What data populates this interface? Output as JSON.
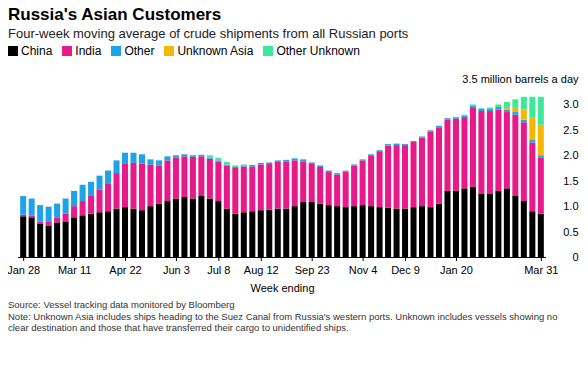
{
  "chart_data": {
    "type": "bar",
    "stacked": true,
    "title": "Russia's Asian Customers",
    "subtitle": "Four-week moving average of crude shipments from all Russian ports",
    "x_label": "Week ending",
    "source": "Source: Vessel tracking data monitored by Bloomberg",
    "note": "Note: Unknown Asia includes ships heading to the Suez Canal from Russia's western ports. Unknown includes vessels showing no clear destination and those that have transferred their cargo to unidentified ships.",
    "legend": "top-left",
    "categories": [
      "Jan 28",
      null,
      null,
      null,
      null,
      null,
      "Mar 11",
      null,
      null,
      null,
      null,
      null,
      "Apr 22",
      null,
      null,
      null,
      null,
      null,
      "Jun 3",
      null,
      null,
      null,
      null,
      "Jul 8",
      null,
      null,
      null,
      null,
      "Aug 12",
      null,
      null,
      null,
      null,
      null,
      "Sep 23",
      null,
      null,
      null,
      null,
      null,
      "Nov 4",
      null,
      null,
      null,
      null,
      "Dec 9",
      null,
      null,
      null,
      null,
      null,
      "Jan 20",
      null,
      null,
      null,
      null,
      null,
      null,
      null,
      null,
      null,
      "Mar 31"
    ],
    "series": [
      {
        "name": "China",
        "color": "#000000",
        "values": [
          0.8,
          0.78,
          0.65,
          0.62,
          0.68,
          0.7,
          0.78,
          0.82,
          0.85,
          0.88,
          0.9,
          0.95,
          0.98,
          0.95,
          0.92,
          1.0,
          1.05,
          1.1,
          1.15,
          1.18,
          1.15,
          1.2,
          1.15,
          1.1,
          0.95,
          0.85,
          0.88,
          0.9,
          0.92,
          0.93,
          0.95,
          0.95,
          1.0,
          1.08,
          1.08,
          1.05,
          1.02,
          1.0,
          0.98,
          1.0,
          1.02,
          1.0,
          0.98,
          0.97,
          0.95,
          0.95,
          0.98,
          1.0,
          0.98,
          1.05,
          1.3,
          1.3,
          1.35,
          1.38,
          1.25,
          1.25,
          1.3,
          1.35,
          1.2,
          1.1,
          0.9,
          0.85
        ]
      },
      {
        "name": "India",
        "color": "#e8198b",
        "values": [
          0.03,
          0.03,
          0.05,
          0.07,
          0.1,
          0.15,
          0.22,
          0.28,
          0.35,
          0.45,
          0.55,
          0.7,
          0.85,
          0.9,
          0.92,
          0.82,
          0.75,
          0.8,
          0.8,
          0.8,
          0.82,
          0.78,
          0.78,
          0.78,
          0.85,
          0.9,
          0.9,
          0.88,
          0.9,
          0.9,
          0.92,
          0.93,
          0.9,
          0.8,
          0.75,
          0.72,
          0.65,
          0.62,
          0.7,
          0.8,
          0.88,
          1.0,
          1.1,
          1.22,
          1.25,
          1.25,
          1.28,
          1.35,
          1.48,
          1.5,
          1.4,
          1.42,
          1.4,
          1.55,
          1.62,
          1.62,
          1.6,
          1.5,
          1.6,
          1.55,
          1.35,
          1.1
        ]
      },
      {
        "name": "Other",
        "color": "#1fa3e8",
        "values": [
          0.37,
          0.34,
          0.32,
          0.3,
          0.27,
          0.3,
          0.3,
          0.32,
          0.28,
          0.27,
          0.25,
          0.25,
          0.22,
          0.2,
          0.18,
          0.1,
          0.1,
          0.08,
          0.05,
          0.04,
          0.03,
          0.03,
          0.02,
          0.02,
          0.02,
          0.02,
          0.02,
          0.03,
          0.03,
          0.03,
          0.03,
          0.03,
          0.04,
          0.04,
          0.03,
          0.03,
          0.03,
          0.03,
          0.02,
          0.02,
          0.02,
          0.02,
          0.02,
          0.03,
          0.03,
          0.02,
          0.02,
          0.02,
          0.03,
          0.03,
          0.03,
          0.03,
          0.03,
          0.05,
          0.05,
          0.05,
          0.05,
          0.05,
          0.05,
          0.05,
          0.05,
          0.05
        ]
      },
      {
        "name": "Unknown Asia",
        "color": "#f5b800",
        "values": [
          0,
          0,
          0,
          0,
          0,
          0,
          0,
          0,
          0,
          0,
          0,
          0,
          0,
          0,
          0,
          0,
          0,
          0,
          0,
          0,
          0,
          0,
          0,
          0,
          0,
          0,
          0,
          0,
          0,
          0,
          0,
          0,
          0,
          0,
          0,
          0,
          0,
          0,
          0,
          0,
          0,
          0,
          0,
          0,
          0,
          0,
          0,
          0,
          0,
          0,
          0,
          0,
          0,
          0,
          0,
          0,
          0,
          0.05,
          0.1,
          0.2,
          0.45,
          0.6
        ]
      },
      {
        "name": "Other Unknown",
        "color": "#3ee89a",
        "values": [
          0,
          0,
          0,
          0,
          0,
          0,
          0,
          0,
          0,
          0,
          0,
          0,
          0,
          0,
          0,
          0,
          0,
          0,
          0,
          0,
          0,
          0,
          0.05,
          0.05,
          0.05,
          0.03,
          0.02,
          0,
          0,
          0,
          0,
          0,
          0,
          0,
          0,
          0,
          0,
          0,
          0,
          0,
          0,
          0,
          0,
          0,
          0,
          0,
          0,
          0,
          0,
          0,
          0,
          0,
          0.02,
          0.02,
          0,
          0.02,
          0.05,
          0.1,
          0.15,
          0.25,
          0.4,
          0.55
        ]
      }
    ],
    "ylim": [
      0,
      3.5
    ],
    "yticks": [
      0,
      0.5,
      {
        "value": 1,
        "label": "1.0"
      },
      1.5,
      {
        "value": 2,
        "label": "2.0"
      },
      2.5,
      {
        "value": 3,
        "label": "3.0"
      },
      {
        "value": 3.5,
        "label": "3.5 million barrels a day"
      }
    ]
  }
}
